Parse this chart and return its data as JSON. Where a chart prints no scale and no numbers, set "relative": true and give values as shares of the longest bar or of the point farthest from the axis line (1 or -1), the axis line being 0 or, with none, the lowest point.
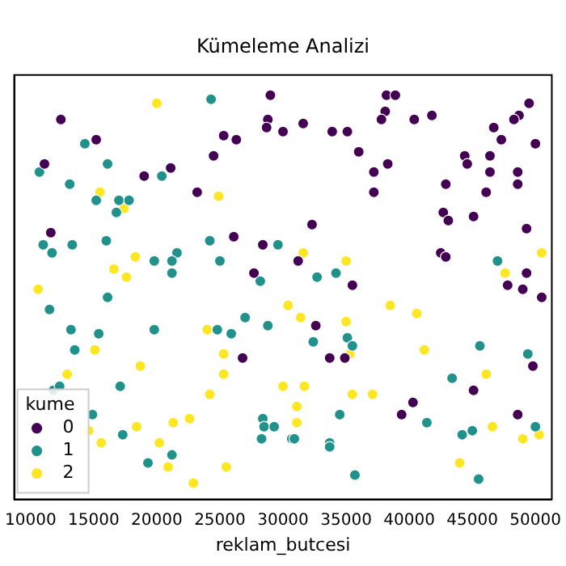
{
  "chart_data": {
    "type": "scatter",
    "title": "Kümeleme Analizi",
    "xlabel": "reklam_butcesi",
    "legend_title": "kume",
    "legend": "bottom left",
    "marker": "circle",
    "grid": false,
    "relative": true,
    "xlim": [
      8700,
      51300
    ],
    "xticks": [
      10000,
      15000,
      20000,
      25000,
      30000,
      35000,
      40000,
      45000,
      50000
    ],
    "series": [
      {
        "name": "0",
        "color": "#440154",
        "x": [
          12400,
          15200,
          11100,
          19000,
          21100,
          23200,
          11600,
          29000,
          28800,
          28700,
          25300,
          26300,
          30000,
          31600,
          33900,
          35100,
          24500,
          36000,
          32300,
          26100,
          28400,
          31200,
          27700,
          35500,
          32600,
          33700,
          34900,
          26800,
          38200,
          38900,
          38100,
          37800,
          40400,
          41800,
          49500,
          48700,
          48300,
          46700,
          47300,
          50000,
          37200,
          38300,
          44400,
          44600,
          46400,
          46400,
          48600,
          48600,
          42900,
          37200,
          46100,
          42700,
          43100,
          45100,
          49300,
          42500,
          42900,
          49300,
          47800,
          49000,
          50500,
          49800,
          45100,
          40300,
          39400,
          48600
        ],
        "values": [
          0.94,
          0.89,
          0.83,
          0.8,
          0.82,
          0.76,
          0.66,
          1.0,
          0.94,
          0.92,
          0.9,
          0.89,
          0.91,
          0.93,
          0.91,
          0.91,
          0.85,
          0.86,
          0.68,
          0.65,
          0.63,
          0.59,
          0.56,
          0.53,
          0.43,
          0.35,
          0.35,
          0.35,
          1.0,
          1.0,
          0.96,
          0.94,
          0.94,
          0.95,
          0.98,
          0.95,
          0.94,
          0.92,
          0.89,
          0.88,
          0.81,
          0.83,
          0.85,
          0.83,
          0.85,
          0.81,
          0.81,
          0.78,
          0.78,
          0.76,
          0.76,
          0.71,
          0.69,
          0.7,
          0.67,
          0.61,
          0.6,
          0.56,
          0.53,
          0.52,
          0.5,
          0.33,
          0.27,
          0.24,
          0.21,
          0.21
        ]
      },
      {
        "name": "1",
        "color": "#21918c",
        "x": [
          14300,
          10700,
          16100,
          20400,
          13100,
          15200,
          17000,
          17800,
          16800,
          11000,
          13300,
          16000,
          11700,
          21600,
          19800,
          21200,
          21200,
          11500,
          16100,
          13200,
          15400,
          19800,
          13500,
          11800,
          12300,
          17100,
          14900,
          17300,
          19300,
          21200,
          24300,
          24200,
          29600,
          25000,
          28200,
          32700,
          34200,
          27000,
          28800,
          24800,
          25900,
          32400,
          35100,
          35500,
          34500,
          28400,
          28500,
          29300,
          28300,
          30700,
          30900,
          33700,
          33700,
          35700,
          47000,
          45600,
          49400,
          43400,
          41400,
          50000,
          44200,
          45000,
          45500
        ],
        "values": [
          0.88,
          0.81,
          0.83,
          0.8,
          0.78,
          0.74,
          0.74,
          0.74,
          0.71,
          0.63,
          0.63,
          0.64,
          0.61,
          0.61,
          0.59,
          0.59,
          0.56,
          0.47,
          0.5,
          0.42,
          0.41,
          0.42,
          0.37,
          0.27,
          0.28,
          0.28,
          0.21,
          0.16,
          0.09,
          0.11,
          0.99,
          0.64,
          0.63,
          0.59,
          0.54,
          0.55,
          0.56,
          0.45,
          0.43,
          0.42,
          0.41,
          0.39,
          0.4,
          0.38,
          0.21,
          0.2,
          0.18,
          0.18,
          0.15,
          0.15,
          0.15,
          0.14,
          0.13,
          0.06,
          0.59,
          0.38,
          0.36,
          0.3,
          0.19,
          0.18,
          0.16,
          0.17,
          0.05
        ]
      },
      {
        "name": "2",
        "color": "#fde725",
        "x": [
          20000,
          15500,
          17400,
          18300,
          16600,
          17600,
          10600,
          15100,
          12900,
          18700,
          14600,
          15600,
          18400,
          20200,
          20900,
          21300,
          22600,
          22900,
          24900,
          31600,
          35000,
          30400,
          31400,
          35000,
          24000,
          35300,
          25300,
          25300,
          30000,
          31700,
          35500,
          24200,
          31100,
          31100,
          25500,
          50500,
          47600,
          38500,
          40600,
          41200,
          46100,
          37100,
          46600,
          49000,
          50300,
          44000
        ],
        "values": [
          0.98,
          0.76,
          0.72,
          0.6,
          0.57,
          0.55,
          0.52,
          0.37,
          0.31,
          0.33,
          0.17,
          0.14,
          0.18,
          0.14,
          0.08,
          0.19,
          0.2,
          0.04,
          0.75,
          0.61,
          0.59,
          0.48,
          0.45,
          0.44,
          0.42,
          0.36,
          0.36,
          0.31,
          0.28,
          0.28,
          0.26,
          0.26,
          0.23,
          0.19,
          0.08,
          0.61,
          0.56,
          0.48,
          0.46,
          0.37,
          0.31,
          0.26,
          0.18,
          0.15,
          0.16,
          0.09
        ]
      }
    ]
  }
}
